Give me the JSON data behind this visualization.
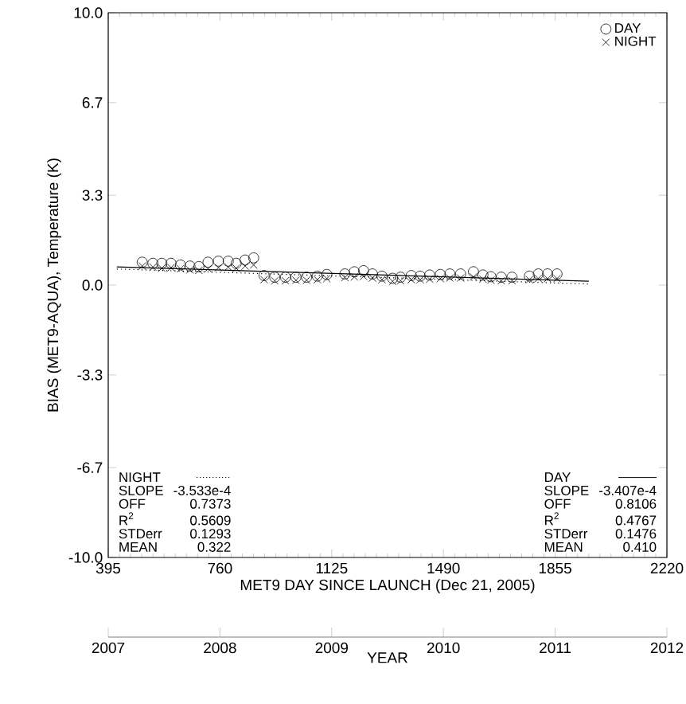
{
  "chart_data": {
    "type": "scatter",
    "xlabel": "MET9 DAY SINCE LAUNCH (Dec 21, 2005)",
    "ylabel": "BIAS (MET9-AQUA), Temperature (K)",
    "x2label": "YEAR",
    "xlim": [
      395,
      2220
    ],
    "xticks": [
      395,
      760,
      1125,
      1490,
      1855,
      2220
    ],
    "x2lim": [
      2007,
      2012
    ],
    "x2ticks": [
      2007,
      2008,
      2009,
      2010,
      2011,
      2012
    ],
    "ylim": [
      -10,
      10
    ],
    "yticks": [
      {
        "value": -10,
        "label": "-10.0"
      },
      {
        "value": -6.7,
        "label": "-6.7"
      },
      {
        "value": -3.3,
        "label": "-3.3"
      },
      {
        "value": 0,
        "label": "0.0"
      },
      {
        "value": 3.3,
        "label": "3.3"
      },
      {
        "value": 6.7,
        "label": "6.7"
      },
      {
        "value": 10,
        "label": "10.0"
      }
    ],
    "legend": "top right",
    "series": [
      {
        "name": "DAY",
        "type": "scatter",
        "marker": "circle",
        "color": "#000000",
        "x": [
          506,
          541,
          570,
          600,
          631,
          662,
          691,
          721,
          755,
          787,
          813,
          842,
          870,
          904,
          939,
          974,
          1008,
          1043,
          1078,
          1109,
          1168,
          1199,
          1229,
          1258,
          1289,
          1324,
          1350,
          1385,
          1414,
          1445,
          1480,
          1511,
          1546,
          1588,
          1619,
          1645,
          1679,
          1714,
          1771,
          1800,
          1830,
          1861
        ],
        "values": [
          0.84,
          0.8,
          0.8,
          0.8,
          0.74,
          0.7,
          0.68,
          0.84,
          0.88,
          0.88,
          0.8,
          0.92,
          1.0,
          0.35,
          0.29,
          0.29,
          0.29,
          0.29,
          0.33,
          0.39,
          0.41,
          0.49,
          0.53,
          0.41,
          0.33,
          0.25,
          0.29,
          0.35,
          0.33,
          0.37,
          0.39,
          0.41,
          0.41,
          0.49,
          0.37,
          0.31,
          0.29,
          0.29,
          0.33,
          0.41,
          0.41,
          0.41
        ]
      },
      {
        "name": "NIGHT",
        "type": "scatter",
        "marker": "cross",
        "color": "#000000",
        "x": [
          506,
          541,
          570,
          600,
          631,
          662,
          691,
          721,
          755,
          787,
          813,
          842,
          870,
          904,
          939,
          974,
          1008,
          1043,
          1078,
          1109,
          1168,
          1199,
          1229,
          1258,
          1289,
          1324,
          1350,
          1385,
          1414,
          1445,
          1480,
          1511,
          1546,
          1588,
          1619,
          1645,
          1679,
          1714,
          1771,
          1800,
          1830,
          1861
        ],
        "values": [
          0.7,
          0.66,
          0.62,
          0.64,
          0.6,
          0.56,
          0.54,
          0.6,
          0.64,
          0.66,
          0.62,
          0.7,
          0.74,
          0.2,
          0.16,
          0.16,
          0.18,
          0.18,
          0.2,
          0.24,
          0.28,
          0.3,
          0.32,
          0.26,
          0.2,
          0.14,
          0.16,
          0.2,
          0.2,
          0.22,
          0.24,
          0.26,
          0.26,
          0.3,
          0.22,
          0.18,
          0.16,
          0.16,
          0.2,
          0.24,
          0.24,
          0.24
        ]
      },
      {
        "type": "line",
        "line_style": "dotted",
        "color": "#000000",
        "x": [
          423,
          1965
        ],
        "values": [
          0.59,
          0.04
        ]
      },
      {
        "type": "line",
        "line_style": "solid",
        "color": "#000000",
        "x": [
          423,
          1965
        ],
        "values": [
          0.67,
          0.14
        ]
      }
    ],
    "annotations": [
      "NIGHT",
      "SLOPE",
      "-3.533e-4",
      "OFF",
      "0.7373",
      "R$^{2}$",
      "0.5609",
      "STDerr",
      "0.1293",
      "MEAN",
      "0.322",
      "DAY",
      "SLOPE",
      "-3.407e-4",
      "OFF",
      "0.8106",
      "R$^{2}$",
      "0.4767",
      "STDerr",
      "0.1476",
      "MEAN",
      "0.410"
    ]
  }
}
